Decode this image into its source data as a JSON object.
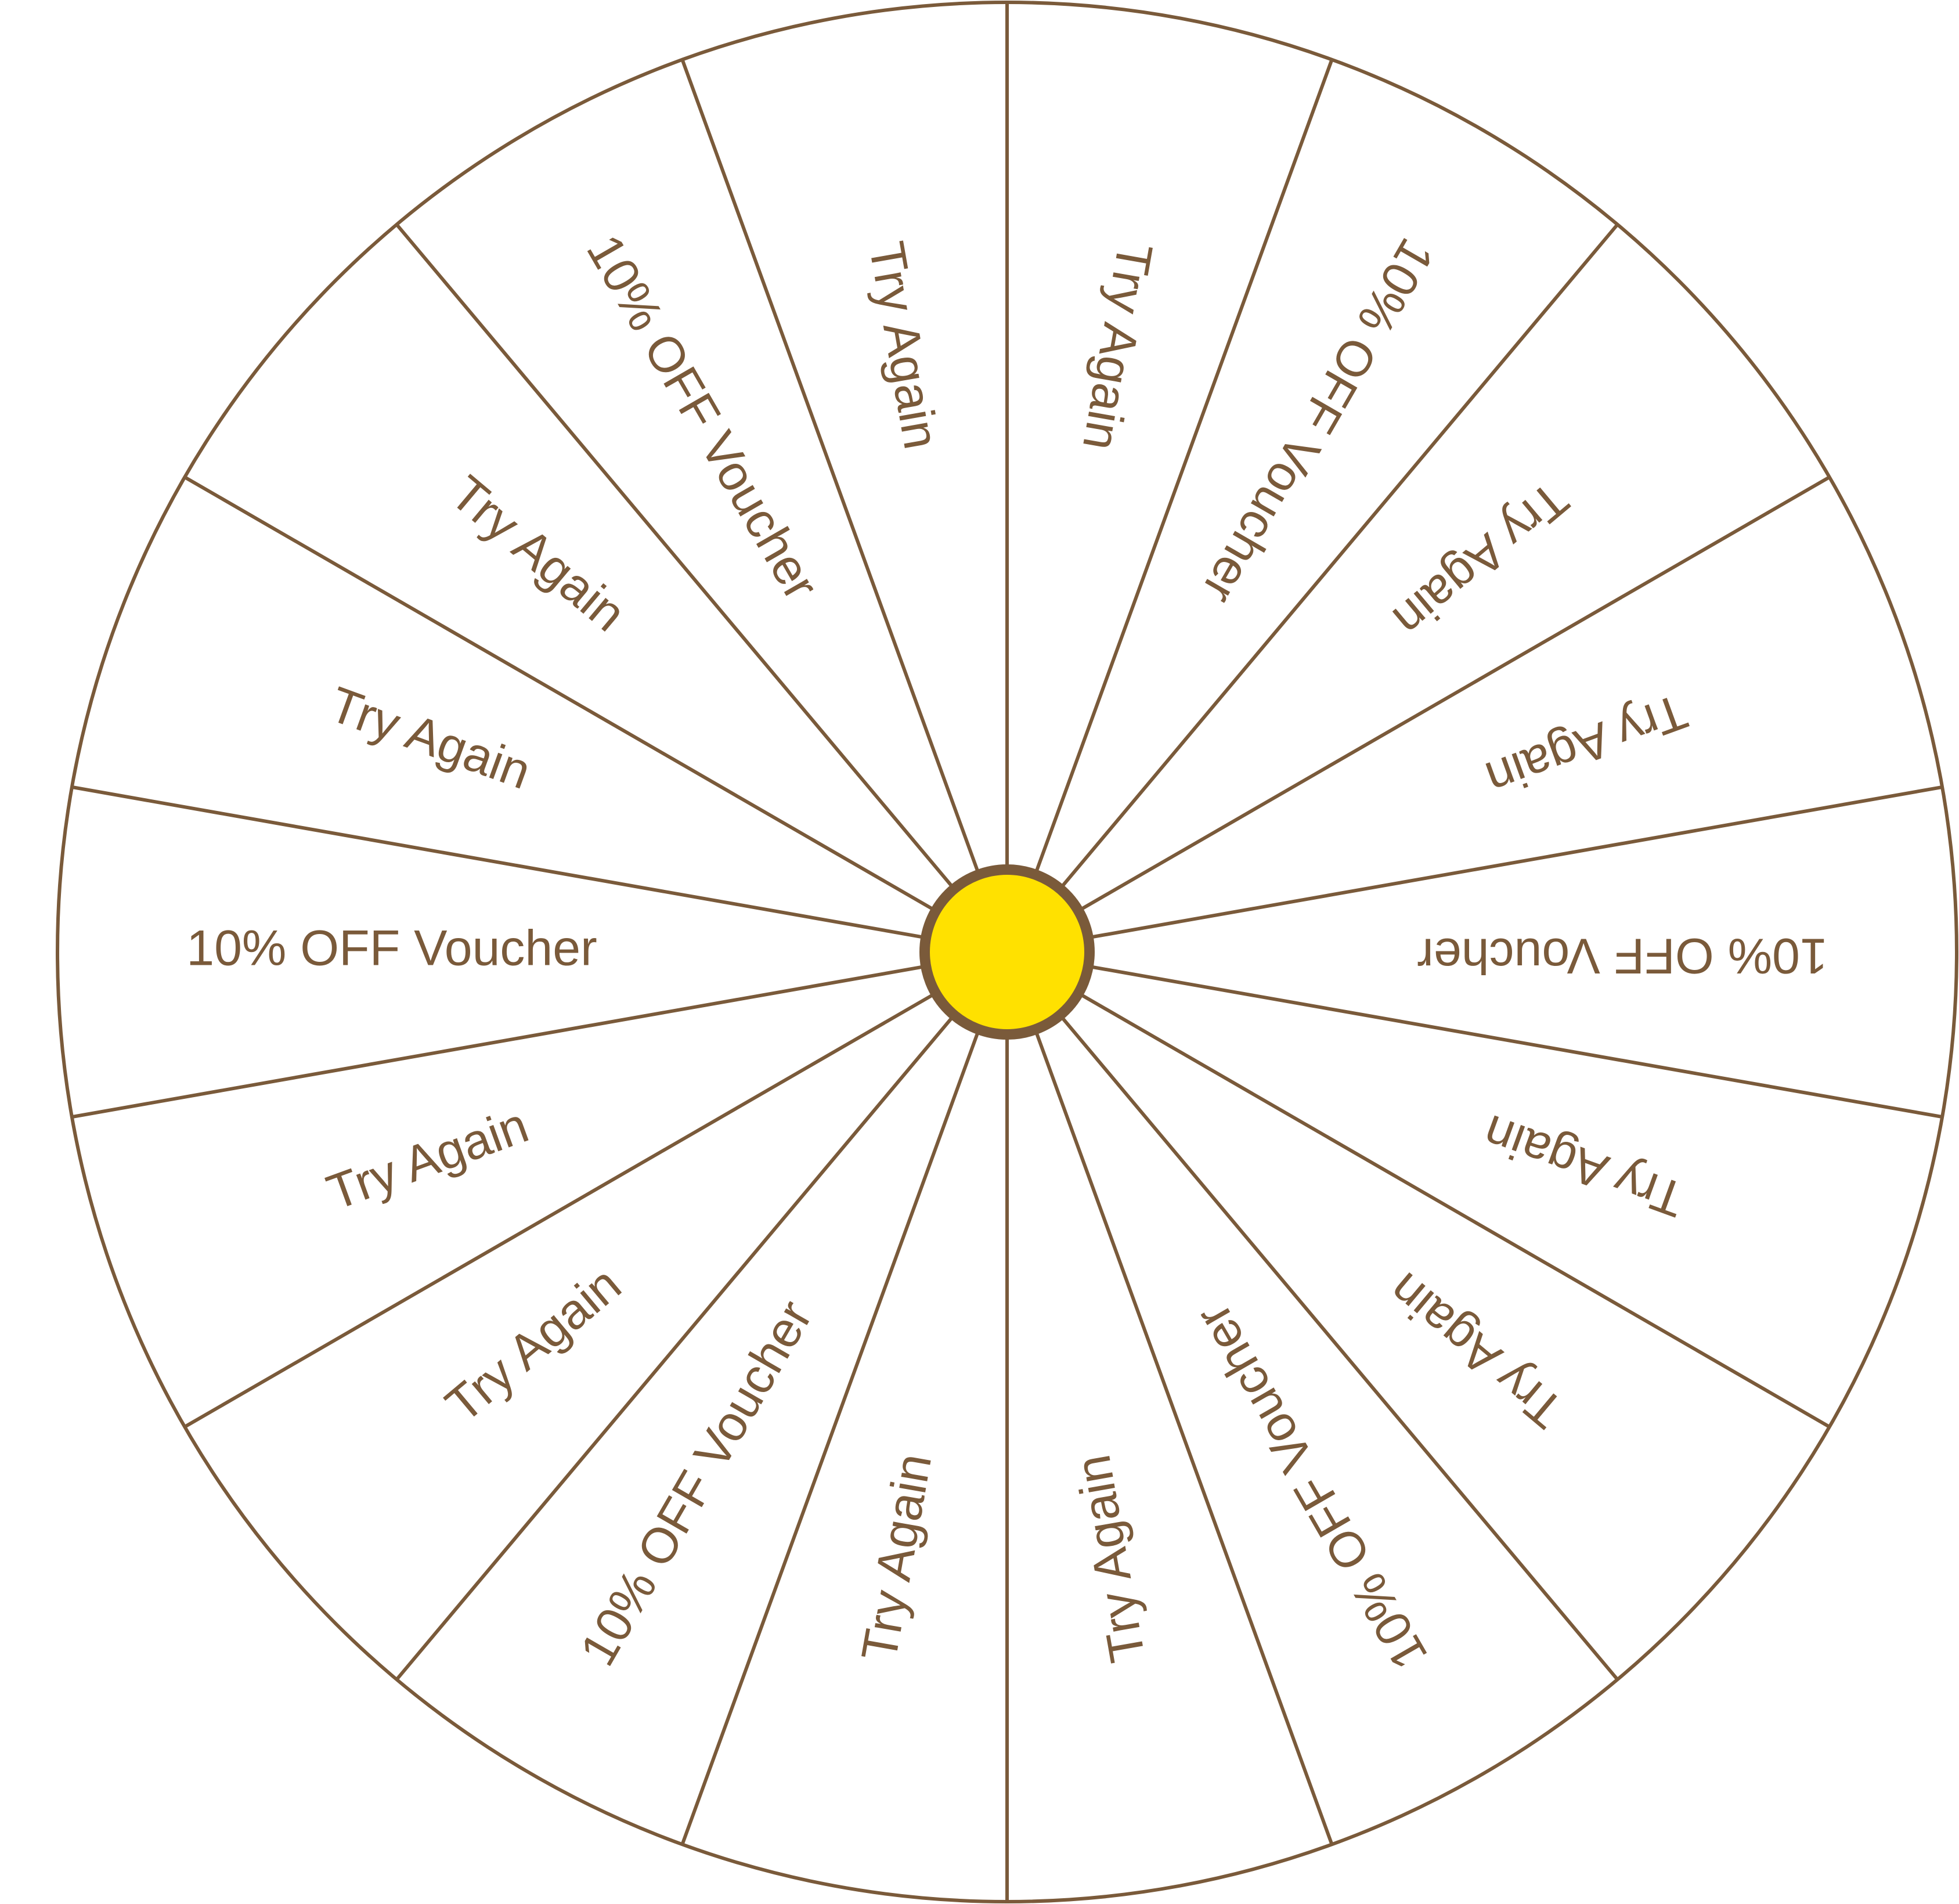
{
  "wheel": {
    "colors": {
      "stroke": "#7a5a3a",
      "label": "#7a5a3a",
      "background": "#ffffff",
      "hub_fill": "#ffe100",
      "hub_stroke": "#7a5a3a"
    },
    "segments": [
      {
        "label": "Try Again"
      },
      {
        "label": "10% OFF Voucher"
      },
      {
        "label": "Try Again"
      },
      {
        "label": "Try Again"
      },
      {
        "label": "10% OFF Voucher"
      },
      {
        "label": "Try Again"
      },
      {
        "label": "Try Again"
      },
      {
        "label": "10% OFF Voucher"
      },
      {
        "label": "Try Again"
      },
      {
        "label": "Try Again"
      },
      {
        "label": "10% OFF Voucher"
      },
      {
        "label": "Try Again"
      },
      {
        "label": "Try Again"
      },
      {
        "label": "10% OFF Voucher"
      },
      {
        "label": "Try Again"
      },
      {
        "label": "Try Again"
      },
      {
        "label": "10% OFF Voucher"
      },
      {
        "label": "Try Again"
      }
    ]
  }
}
